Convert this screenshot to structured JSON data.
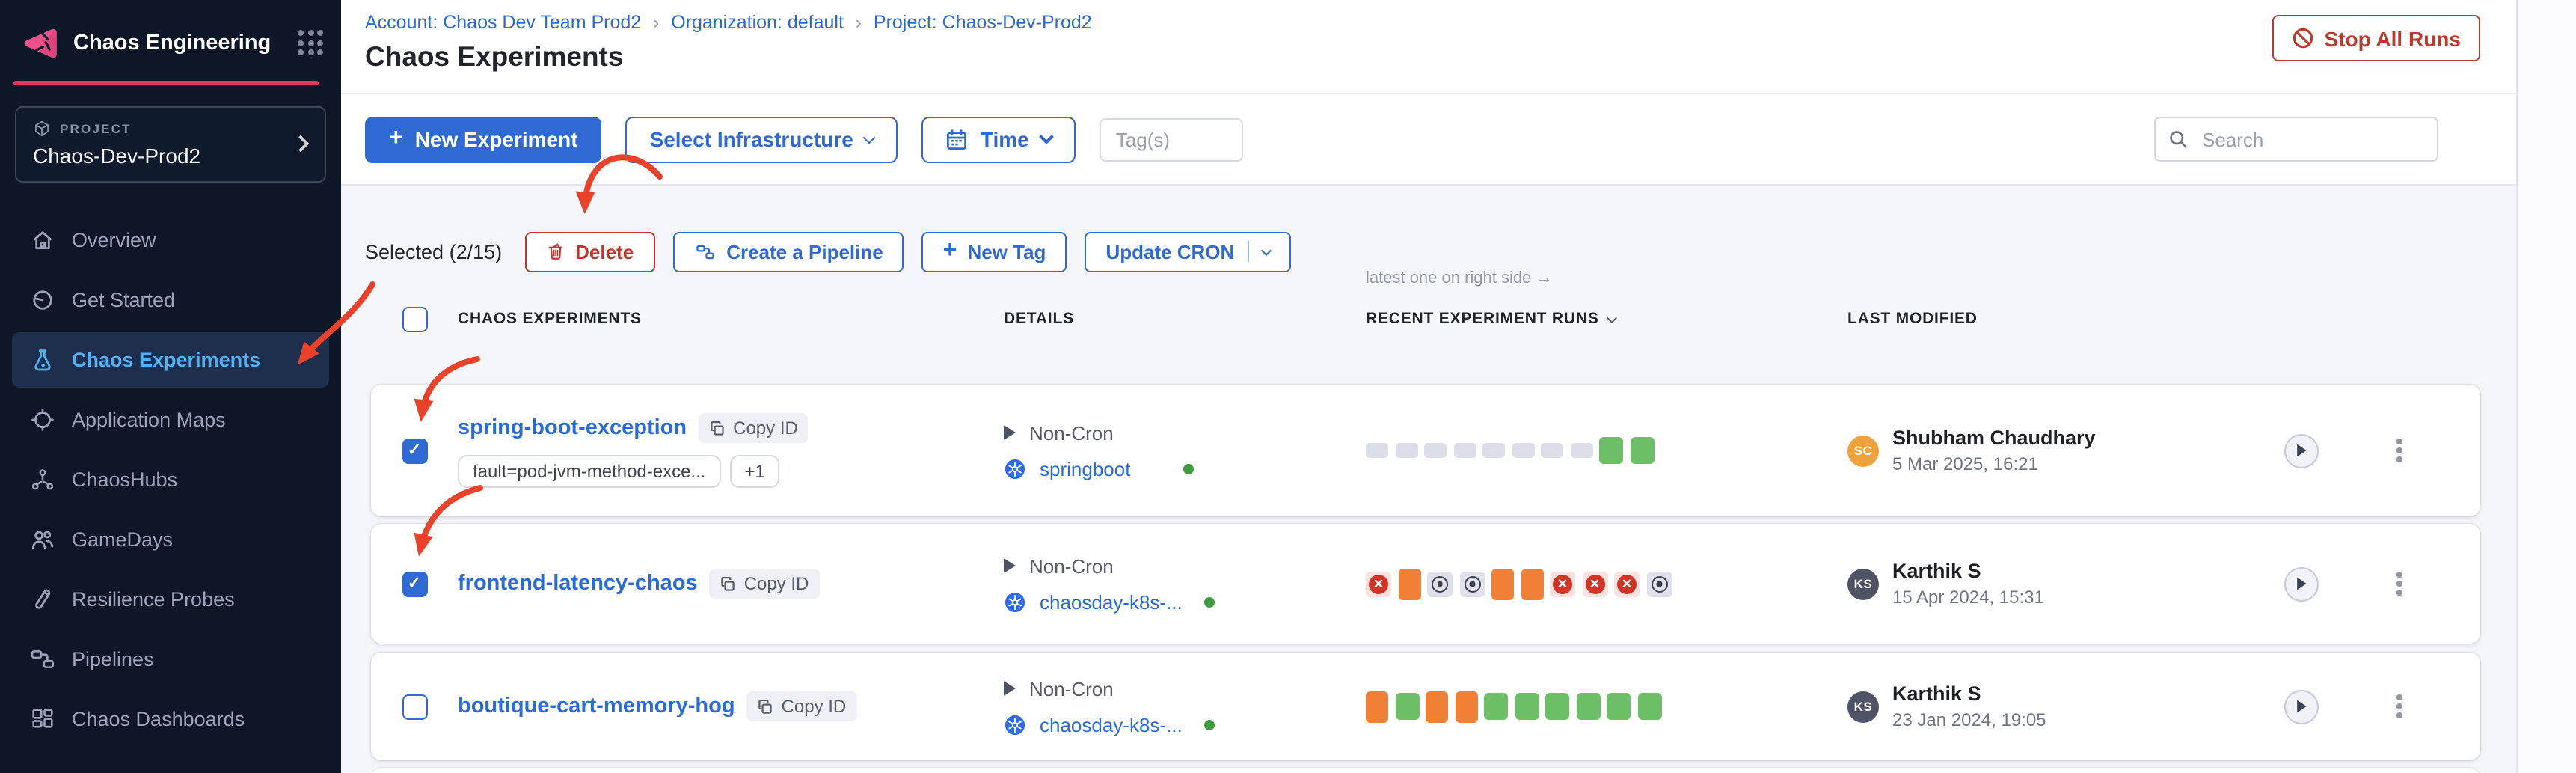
{
  "app": {
    "name": "Chaos Engineering"
  },
  "breadcrumb": {
    "items": [
      "Account: Chaos Dev Team Prod2",
      "Organization: default",
      "Project: Chaos-Dev-Prod2"
    ],
    "separator": "›"
  },
  "page": {
    "title": "Chaos Experiments",
    "stop_all_runs": "Stop All Runs"
  },
  "sidebar": {
    "project_label": "PROJECT",
    "project_name": "Chaos-Dev-Prod2",
    "items": [
      {
        "label": "Overview",
        "icon": "home-icon",
        "active": false
      },
      {
        "label": "Get Started",
        "icon": "get-started-icon",
        "active": false
      },
      {
        "label": "Chaos Experiments",
        "icon": "flask-icon",
        "active": true
      },
      {
        "label": "Application Maps",
        "icon": "application-map-icon",
        "active": false
      },
      {
        "label": "ChaosHubs",
        "icon": "hub-icon",
        "active": false
      },
      {
        "label": "GameDays",
        "icon": "people-icon",
        "active": false
      },
      {
        "label": "Resilience Probes",
        "icon": "probe-icon",
        "active": false
      },
      {
        "label": "Pipelines",
        "icon": "pipeline-icon",
        "active": false
      },
      {
        "label": "Chaos Dashboards",
        "icon": "dashboard-icon",
        "active": false
      }
    ]
  },
  "toolbar": {
    "new_experiment": "New Experiment",
    "select_infrastructure": "Select Infrastructure",
    "time": "Time",
    "tags_placeholder": "Tag(s)",
    "search_placeholder": "Search"
  },
  "bulkbar": {
    "selected": "Selected (2/15)",
    "delete": "Delete",
    "create_pipeline": "Create a Pipeline",
    "new_tag": "New Tag",
    "update_cron": "Update CRON"
  },
  "table": {
    "select_all": false,
    "note": "latest one on right side →",
    "columns": {
      "experiments": "CHAOS EXPERIMENTS",
      "details": "DETAILS",
      "runs": "RECENT EXPERIMENT RUNS",
      "modified": "LAST MODIFIED"
    },
    "rows": [
      {
        "name": "spring-boot-exception",
        "copy_id": "Copy ID",
        "checked": true,
        "tags": [
          "fault=pod-jvm-method-exce...",
          "+1"
        ],
        "schedule": "Non-Cron",
        "infrastructure": "springboot",
        "runs": [
          "pending",
          "pending",
          "pending",
          "pending",
          "pending",
          "pending",
          "pending",
          "pending",
          "passed",
          "passed"
        ],
        "modified": {
          "initials": "SC",
          "user": "Shubham Chaudhary",
          "date": "5 Mar 2025, 16:21",
          "avatar_color": "#EFA13B"
        }
      },
      {
        "name": "frontend-latency-chaos",
        "copy_id": "Copy ID",
        "checked": true,
        "tags": [],
        "schedule": "Non-Cron",
        "infrastructure": "chaosday-k8s-...",
        "runs": [
          "failed",
          "running",
          "stopped",
          "stopped",
          "running",
          "running",
          "failed",
          "failed",
          "failed",
          "stopped"
        ],
        "modified": {
          "initials": "KS",
          "user": "Karthik S",
          "date": "15 Apr 2024, 15:31",
          "avatar_color": "#4E5466"
        }
      },
      {
        "name": "boutique-cart-memory-hog",
        "copy_id": "Copy ID",
        "checked": false,
        "tags": [],
        "schedule": "Non-Cron",
        "infrastructure": "chaosday-k8s-...",
        "runs": [
          "running",
          "passed",
          "running",
          "running",
          "passed",
          "passed",
          "passed",
          "passed",
          "passed",
          "passed"
        ],
        "modified": {
          "initials": "KS",
          "user": "Karthik S",
          "date": "23 Jan 2024, 19:05",
          "avatar_color": "#4E5466"
        }
      }
    ]
  },
  "colors": {
    "primary_blue": "#2E6AD2",
    "brand_pink": "#EF2E64",
    "danger_red": "#BB3A2E",
    "run_green": "#6DBF67",
    "run_orange": "#EF8036",
    "run_gray": "#DCDEE7",
    "kubernetes_blue": "#326CE5",
    "sidebar_bg": "#0E1727",
    "annotation_red": "#E8432A"
  }
}
